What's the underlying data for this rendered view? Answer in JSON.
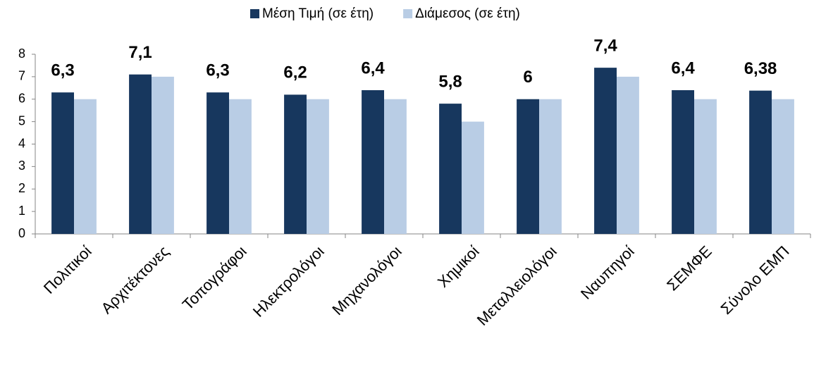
{
  "chart_data": {
    "type": "bar",
    "categories": [
      "Πολιτικοί",
      "Αρχιτέκτονες",
      "Τοπογράφοι",
      "Ηλεκτρολόγοι",
      "Μηχανολόγοι",
      "Χημικοί",
      "Μεταλλειολόγοι",
      "Ναυπηγοί",
      "ΣΕΜΦΕ",
      "Σύνολο ΕΜΠ"
    ],
    "series": [
      {
        "name": "Μέση Τιμή (σε έτη)",
        "color": "#17375e",
        "values": [
          6.3,
          7.1,
          6.3,
          6.2,
          6.4,
          5.8,
          6,
          7.4,
          6.4,
          6.38
        ],
        "value_labels": [
          "6,3",
          "7,1",
          "6,3",
          "6,2",
          "6,4",
          "5,8",
          "6",
          "7,4",
          "6,4",
          "6,38"
        ]
      },
      {
        "name": "Διάμεσος (σε έτη)",
        "color": "#b9cde5",
        "values": [
          6,
          7,
          6,
          6,
          6,
          5,
          6,
          7,
          6,
          6
        ]
      }
    ],
    "ylim": [
      0,
      8
    ],
    "yticks": [
      0,
      1,
      2,
      3,
      4,
      5,
      6,
      7,
      8
    ],
    "legend": "top"
  }
}
